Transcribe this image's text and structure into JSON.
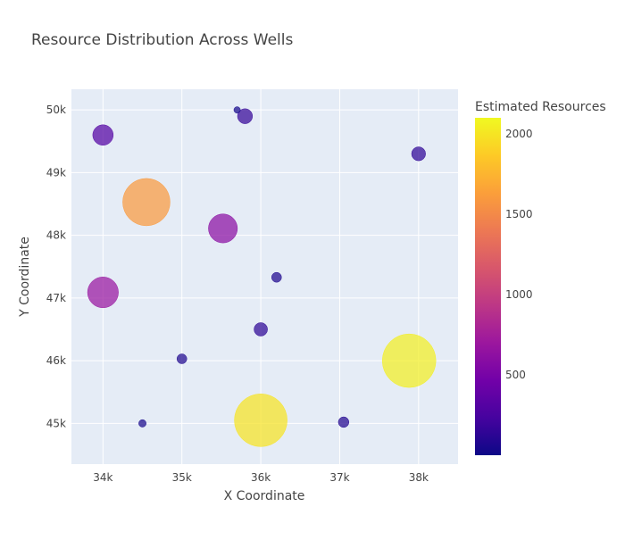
{
  "chart_data": {
    "type": "scatter",
    "title": "Resource Distribution Across Wells",
    "xlabel": "X Coordinate",
    "ylabel": "Y Coordinate",
    "xlim": [
      33600,
      38500
    ],
    "ylim": [
      44350,
      50330
    ],
    "x_ticks": [
      34000,
      35000,
      36000,
      37000,
      38000
    ],
    "x_tick_labels": [
      "34k",
      "35k",
      "36k",
      "37k",
      "38k"
    ],
    "y_ticks": [
      45000,
      46000,
      47000,
      48000,
      49000,
      50000
    ],
    "y_tick_labels": [
      "45k",
      "46k",
      "47k",
      "48k",
      "49k",
      "50k"
    ],
    "grid": true,
    "plot_background": "#E5ECF6",
    "colorbar": {
      "title": "Estimated Resources",
      "range": [
        0,
        2100
      ],
      "ticks": [
        500,
        1000,
        1500,
        2000
      ],
      "tick_labels": [
        "500",
        "1000",
        "1500",
        "2000"
      ],
      "colorscale": [
        "#0d0887",
        "#46039f",
        "#7201a8",
        "#9c179e",
        "#bd3786",
        "#d8576b",
        "#ed7953",
        "#fb9f3a",
        "#fdca26",
        "#f0f921"
      ]
    },
    "points": [
      {
        "x": 34000,
        "y": 49600,
        "value": 300
      },
      {
        "x": 35700,
        "y": 50000,
        "value": 30
      },
      {
        "x": 35800,
        "y": 49900,
        "value": 160
      },
      {
        "x": 38000,
        "y": 49300,
        "value": 140
      },
      {
        "x": 34550,
        "y": 48530,
        "value": 1600
      },
      {
        "x": 35520,
        "y": 48110,
        "value": 600
      },
      {
        "x": 36200,
        "y": 47330,
        "value": 70
      },
      {
        "x": 34000,
        "y": 47090,
        "value": 680
      },
      {
        "x": 36000,
        "y": 46500,
        "value": 130
      },
      {
        "x": 35000,
        "y": 46030,
        "value": 70
      },
      {
        "x": 37880,
        "y": 46000,
        "value": 2050
      },
      {
        "x": 34500,
        "y": 45000,
        "value": 40
      },
      {
        "x": 36000,
        "y": 45050,
        "value": 1990
      },
      {
        "x": 37050,
        "y": 45020,
        "value": 80
      }
    ]
  }
}
